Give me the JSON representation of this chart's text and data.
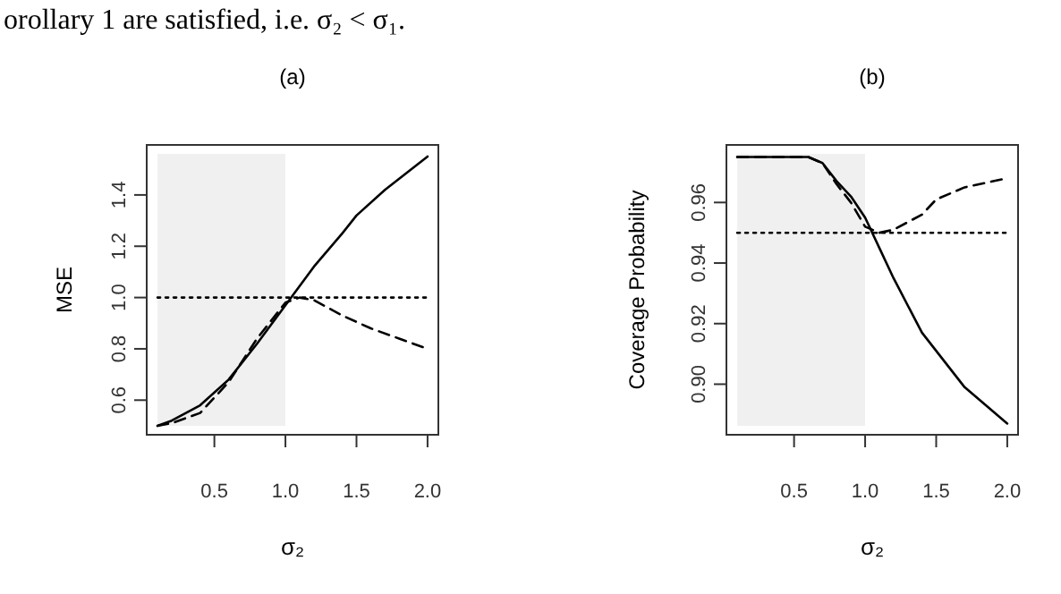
{
  "chart_data": [
    {
      "type": "line",
      "title": "(a)",
      "xlabel": "σ₂",
      "ylabel": "MSE",
      "annotations": [
        "orollary 1 are satisfied, i.e. σ₂ < σ₁."
      ],
      "xlim": [
        0.024,
        2.076
      ],
      "ylim": [
        0.465,
        1.595
      ],
      "xticks": [
        {
          "value": 0.5,
          "label": "0.5"
        },
        {
          "value": 1,
          "label": "1.0"
        },
        {
          "value": 1.5,
          "label": "1.5"
        },
        {
          "value": 2,
          "label": "2.0"
        }
      ],
      "yticks": [
        {
          "value": 0.6,
          "label": "0.6"
        },
        {
          "value": 0.8,
          "label": "0.8"
        },
        {
          "value": 1,
          "label": "1.0"
        },
        {
          "value": 1.2,
          "label": "1.2"
        },
        {
          "value": 1.4,
          "label": "1.4"
        }
      ],
      "bands": [
        {
          "axis": "x",
          "from": 0.1,
          "to": 1.0,
          "color": "#f0f0f0"
        }
      ],
      "series": [
        {
          "color": "#000000",
          "line_style": "solid",
          "x": [
            0.1,
            0.2,
            0.4,
            0.6,
            0.8,
            1.0,
            1.2,
            1.4,
            1.5,
            1.7,
            2.0
          ],
          "values": [
            0.5,
            0.52,
            0.58,
            0.68,
            0.82,
            0.97,
            1.12,
            1.25,
            1.32,
            1.42,
            1.55
          ]
        },
        {
          "color": "#000000",
          "line_style": "dashed",
          "x": [
            0.1,
            0.2,
            0.4,
            0.6,
            0.8,
            1.0,
            1.1,
            1.2,
            1.4,
            1.6,
            1.8,
            2.0
          ],
          "values": [
            0.5,
            0.51,
            0.55,
            0.67,
            0.84,
            0.98,
            1.0,
            0.99,
            0.93,
            0.88,
            0.84,
            0.8
          ]
        },
        {
          "color": "#000000",
          "line_style": "dotted",
          "x": [
            0.1,
            2.0
          ],
          "values": [
            1.0,
            1.0
          ]
        }
      ]
    },
    {
      "type": "line",
      "title": "(b)",
      "xlabel": "σ₂",
      "ylabel": "Coverage Probability",
      "xlim": [
        0.024,
        2.076
      ],
      "ylim": [
        0.8833,
        0.979
      ],
      "xticks": [
        {
          "value": 0.5,
          "label": "0.5"
        },
        {
          "value": 1,
          "label": "1.0"
        },
        {
          "value": 1.5,
          "label": "1.5"
        },
        {
          "value": 2,
          "label": "2.0"
        }
      ],
      "yticks": [
        {
          "value": 0.9,
          "label": "0.90"
        },
        {
          "value": 0.92,
          "label": "0.92"
        },
        {
          "value": 0.94,
          "label": "0.94"
        },
        {
          "value": 0.96,
          "label": "0.96"
        }
      ],
      "bands": [
        {
          "axis": "x",
          "from": 0.1,
          "to": 1.0,
          "color": "#f0f0f0"
        }
      ],
      "series": [
        {
          "color": "#000000",
          "line_style": "solid",
          "x": [
            0.1,
            0.6,
            0.7,
            0.8,
            0.9,
            1.0,
            1.05,
            1.1,
            1.2,
            1.4,
            1.7,
            2.0
          ],
          "values": [
            0.975,
            0.975,
            0.973,
            0.967,
            0.962,
            0.955,
            0.95,
            0.945,
            0.935,
            0.917,
            0.899,
            0.887
          ]
        },
        {
          "color": "#000000",
          "line_style": "dashed",
          "x": [
            0.1,
            0.6,
            0.7,
            0.8,
            0.9,
            1.0,
            1.1,
            1.2,
            1.4,
            1.5,
            1.7,
            2.0
          ],
          "values": [
            0.975,
            0.975,
            0.973,
            0.966,
            0.96,
            0.952,
            0.95,
            0.951,
            0.956,
            0.961,
            0.965,
            0.968
          ]
        },
        {
          "color": "#000000",
          "line_style": "dotted",
          "x": [
            0.1,
            2.0
          ],
          "values": [
            0.95,
            0.95
          ]
        }
      ]
    }
  ]
}
